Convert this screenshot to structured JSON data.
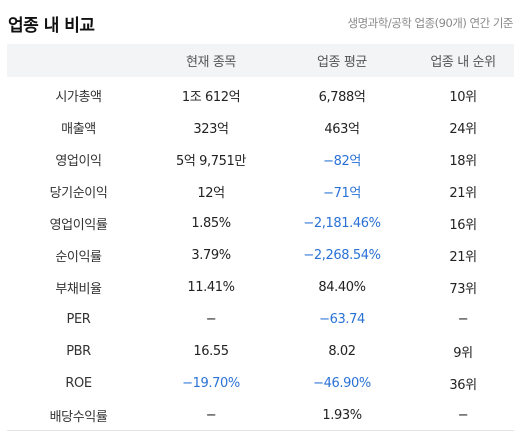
{
  "header": {
    "title": "업종 내 비교",
    "subtitle": "생명과학/공학 업종(90개) 연간 기준"
  },
  "columns": [
    "",
    "현재 종목",
    "업종 평균",
    "업종 내 순위"
  ],
  "rows": [
    {
      "label": "시가총액",
      "current": "1조 612억",
      "average": "6,788억",
      "rank": "10위",
      "current_neg": false,
      "average_neg": false
    },
    {
      "label": "매출액",
      "current": "323억",
      "average": "463억",
      "rank": "24위",
      "current_neg": false,
      "average_neg": false
    },
    {
      "label": "영업이익",
      "current": "5억 9,751만",
      "average": "−82억",
      "rank": "18위",
      "current_neg": false,
      "average_neg": true
    },
    {
      "label": "당기순이익",
      "current": "12억",
      "average": "−71억",
      "rank": "21위",
      "current_neg": false,
      "average_neg": true
    },
    {
      "label": "영업이익률",
      "current": "1.85%",
      "average": "−2,181.46%",
      "rank": "16위",
      "current_neg": false,
      "average_neg": true
    },
    {
      "label": "순이익률",
      "current": "3.79%",
      "average": "−2,268.54%",
      "rank": "21위",
      "current_neg": false,
      "average_neg": true
    },
    {
      "label": "부채비율",
      "current": "11.41%",
      "average": "84.40%",
      "rank": "73위",
      "current_neg": false,
      "average_neg": false
    },
    {
      "label": "PER",
      "current": "−",
      "average": "−63.74",
      "rank": "−",
      "current_neg": false,
      "average_neg": true
    },
    {
      "label": "PBR",
      "current": "16.55",
      "average": "8.02",
      "rank": "9위",
      "current_neg": false,
      "average_neg": false
    },
    {
      "label": "ROE",
      "current": "−19.70%",
      "average": "−46.90%",
      "rank": "36위",
      "current_neg": true,
      "average_neg": true
    },
    {
      "label": "배당수익률",
      "current": "−",
      "average": "1.93%",
      "rank": "−",
      "current_neg": false,
      "average_neg": false
    }
  ],
  "colors": {
    "negative": "#2a72d6",
    "header_bg": "#f3f4f6"
  }
}
